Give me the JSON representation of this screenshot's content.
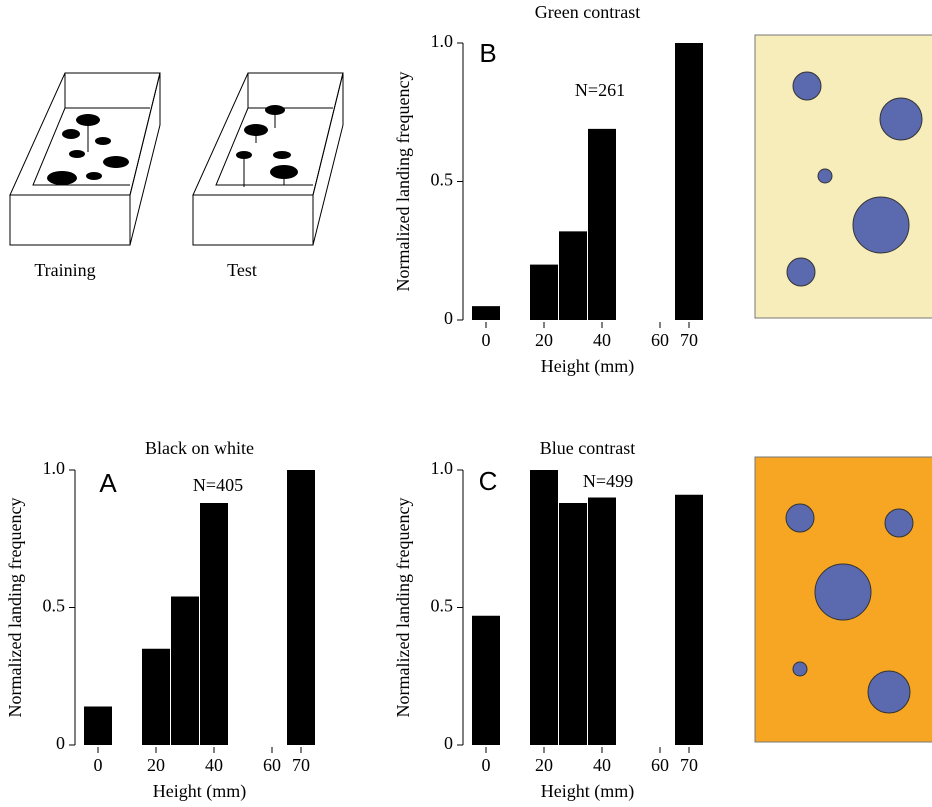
{
  "illustration": {
    "training": "Training",
    "test": "Test"
  },
  "chart_data": [
    {
      "type": "bar",
      "panel": "A",
      "title": "Black on white",
      "annotation": "N=405",
      "categories": [
        "0",
        null,
        "20",
        null,
        "40",
        null,
        "60",
        "70"
      ],
      "values": [
        0.14,
        null,
        0.35,
        0.54,
        0.88,
        null,
        null,
        1.0
      ],
      "color": "#000000",
      "ylim": [
        0,
        1
      ],
      "yticks": [
        0,
        0.5,
        {
          "value": 1,
          "label": "1.0"
        }
      ],
      "xlabel": "Height (mm)",
      "ylabel": "Normalized landing frequency"
    },
    {
      "type": "bar",
      "panel": "B",
      "title": "Green contrast",
      "annotation": "N=261",
      "categories": [
        "0",
        null,
        "20",
        null,
        "40",
        null,
        "60",
        "70"
      ],
      "values": [
        0.05,
        null,
        0.2,
        0.32,
        0.69,
        null,
        null,
        1.0
      ],
      "color": "#000000",
      "ylim": [
        0,
        1
      ],
      "yticks": [
        0,
        0.5,
        {
          "value": 1,
          "label": "1.0"
        }
      ],
      "xlabel": "Height (mm)",
      "ylabel": "Normalized landing frequency"
    },
    {
      "type": "bar",
      "panel": "C",
      "title": "Blue contrast",
      "annotation": "N=499",
      "categories": [
        "0",
        null,
        "20",
        null,
        "40",
        null,
        "60",
        "70"
      ],
      "values": [
        0.47,
        null,
        1.0,
        0.88,
        0.9,
        null,
        null,
        0.91
      ],
      "color": "#000000",
      "ylim": [
        0,
        1
      ],
      "yticks": [
        0,
        0.5,
        {
          "value": 1,
          "label": "1.0"
        }
      ],
      "xlabel": "Height (mm)",
      "ylabel": "Normalized landing frequency"
    }
  ]
}
